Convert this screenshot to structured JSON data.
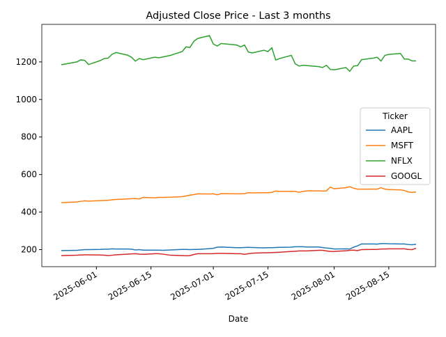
{
  "chart_data": {
    "type": "line",
    "title": "Adjusted Close Price - Last 3 months",
    "x_label": "Date",
    "legend_title": "Ticker",
    "legend_position": "right",
    "x": [
      "2025-05-23",
      "2025-05-27",
      "2025-05-28",
      "2025-05-29",
      "2025-05-30",
      "2025-06-02",
      "2025-06-03",
      "2025-06-04",
      "2025-06-05",
      "2025-06-06",
      "2025-06-09",
      "2025-06-10",
      "2025-06-11",
      "2025-06-12",
      "2025-06-13",
      "2025-06-16",
      "2025-06-17",
      "2025-06-18",
      "2025-06-20",
      "2025-06-23",
      "2025-06-24",
      "2025-06-25",
      "2025-06-26",
      "2025-06-27",
      "2025-06-30",
      "2025-07-01",
      "2025-07-02",
      "2025-07-03",
      "2025-07-07",
      "2025-07-08",
      "2025-07-09",
      "2025-07-10",
      "2025-07-11",
      "2025-07-14",
      "2025-07-15",
      "2025-07-16",
      "2025-07-17",
      "2025-07-18",
      "2025-07-21",
      "2025-07-22",
      "2025-07-23",
      "2025-07-24",
      "2025-07-25",
      "2025-07-28",
      "2025-07-29",
      "2025-07-30",
      "2025-07-31",
      "2025-08-01",
      "2025-08-04",
      "2025-08-05",
      "2025-08-06",
      "2025-08-07",
      "2025-08-08",
      "2025-08-11",
      "2025-08-12",
      "2025-08-13",
      "2025-08-14",
      "2025-08-15",
      "2025-08-18",
      "2025-08-19",
      "2025-08-20",
      "2025-08-21",
      "2025-08-22"
    ],
    "series": [
      {
        "name": "AAPL",
        "color": "#1f77b4",
        "values": [
          195,
          196,
          198,
          200,
          200,
          201,
          202,
          202,
          204,
          203,
          203,
          202,
          198,
          200,
          197,
          197,
          197,
          196,
          198,
          201,
          201,
          200,
          201,
          201,
          205,
          207,
          213,
          214,
          210,
          210,
          211,
          212,
          211,
          209,
          210,
          210,
          211,
          212,
          213,
          215,
          215,
          215,
          214,
          214,
          211,
          208,
          207,
          203,
          204,
          203,
          213,
          220,
          230,
          230,
          229,
          232,
          232,
          231,
          230,
          230,
          227,
          226,
          228
        ]
      },
      {
        "name": "MSFT",
        "color": "#ff7f0e",
        "values": [
          450,
          454,
          457,
          460,
          458,
          461,
          462,
          463,
          465,
          467,
          470,
          471,
          472,
          470,
          478,
          476,
          478,
          478,
          479,
          482,
          486,
          490,
          493,
          497,
          496,
          497,
          492,
          498,
          497,
          497,
          498,
          503,
          502,
          503,
          503,
          505,
          512,
          510,
          510,
          510,
          505,
          510,
          513,
          513,
          512,
          513,
          533,
          524,
          530,
          535,
          527,
          522,
          522,
          522,
          522,
          530,
          522,
          520,
          518,
          515,
          507,
          505,
          507
        ]
      },
      {
        "name": "NFLX",
        "color": "#2ca02c",
        "values": [
          1185,
          1200,
          1211,
          1208,
          1186,
          1207,
          1218,
          1220,
          1240,
          1250,
          1236,
          1225,
          1204,
          1218,
          1212,
          1225,
          1222,
          1226,
          1235,
          1255,
          1280,
          1277,
          1310,
          1325,
          1340,
          1295,
          1285,
          1298,
          1290,
          1280,
          1290,
          1252,
          1248,
          1262,
          1255,
          1275,
          1210,
          1218,
          1235,
          1190,
          1178,
          1182,
          1180,
          1175,
          1170,
          1182,
          1160,
          1158,
          1170,
          1150,
          1178,
          1180,
          1212,
          1220,
          1225,
          1205,
          1235,
          1240,
          1245,
          1215,
          1215,
          1205,
          1205
        ]
      },
      {
        "name": "GOOGL",
        "color": "#d62728",
        "values": [
          168,
          170,
          171,
          172,
          172,
          171,
          170,
          168,
          170,
          172,
          176,
          177,
          178,
          176,
          175,
          178,
          178,
          176,
          170,
          168,
          167,
          168,
          174,
          178,
          178,
          178,
          180,
          180,
          178,
          178,
          175,
          178,
          181,
          183,
          183,
          184,
          185,
          186,
          190,
          191,
          193,
          193,
          193,
          196,
          196,
          193,
          190,
          190,
          194,
          196,
          197,
          195,
          200,
          201,
          201,
          203,
          203,
          204,
          204,
          204,
          201,
          200,
          207
        ]
      }
    ],
    "xlim": [
      "2025-05-18",
      "2025-08-27"
    ],
    "xticks": [
      "2025-06-01",
      "2025-06-15",
      "2025-07-01",
      "2025-07-15",
      "2025-08-01",
      "2025-08-15"
    ],
    "ylim": [
      109,
      1400
    ],
    "yticks": [
      200,
      400,
      600,
      800,
      1000,
      1200
    ]
  }
}
